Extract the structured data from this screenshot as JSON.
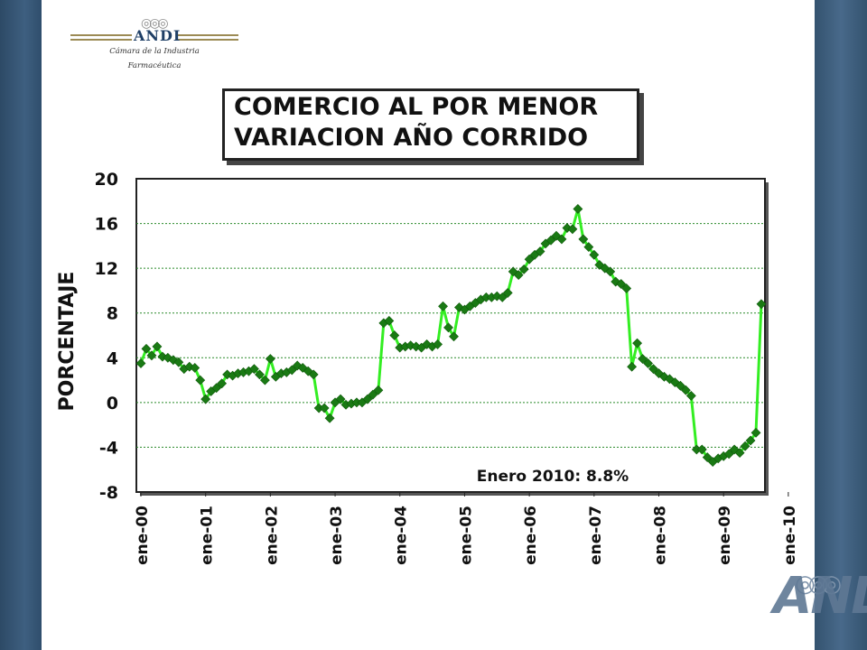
{
  "logo": {
    "name": "ANDI",
    "caption_line1": "Cámara de la Industria",
    "caption_line2": "Farmacéutica"
  },
  "title": {
    "line1": "COMERCIO AL POR MENOR",
    "line2": "VARIACION AÑO CORRIDO"
  },
  "colors": {
    "series": "#33ee22",
    "marker": "#1a7a14",
    "grid": "#2a8a2a",
    "band": "#3a5a7a"
  },
  "chart_data": {
    "type": "line",
    "title": "COMERCIO AL POR MENOR VARIACION AÑO CORRIDO",
    "ylabel": "PORCENTAJE",
    "xlabel": "",
    "ylim": [
      -8,
      20
    ],
    "yticks": [
      20,
      16,
      12,
      8,
      4,
      0,
      -4,
      -8
    ],
    "ytick_labels": [
      "20",
      "16",
      "12",
      "8",
      "4",
      "0",
      "-4",
      "-8"
    ],
    "xtick_labels": [
      "ene-00",
      "ene-01",
      "ene-02",
      "ene-03",
      "ene-04",
      "ene-05",
      "ene-06",
      "ene-07",
      "ene-08",
      "ene-09",
      "ene-10"
    ],
    "grid": "horizontal dashed",
    "annotation": "Enero 2010: 8.8%",
    "series": [
      {
        "start": "ene-00",
        "frequency": "monthly",
        "values": [
          3.5,
          4.8,
          4.2,
          5.0,
          4.1,
          4.0,
          3.8,
          3.6,
          3.0,
          3.2,
          3.1,
          2.0,
          0.3,
          1.0,
          1.3,
          1.7,
          2.5,
          2.4,
          2.6,
          2.7,
          2.8,
          3.0,
          2.5,
          2.0,
          3.9,
          2.3,
          2.6,
          2.7,
          2.9,
          3.3,
          3.1,
          2.8,
          2.5,
          -0.5,
          -0.5,
          -1.4,
          0.0,
          0.3,
          -0.2,
          -0.1,
          0.0,
          0.0,
          0.3,
          0.7,
          1.1,
          7.1,
          7.3,
          6.0,
          4.9,
          5.0,
          5.1,
          5.0,
          4.9,
          5.2,
          5.0,
          5.2,
          8.6,
          6.7,
          5.9,
          8.5,
          8.3,
          8.6,
          8.9,
          9.2,
          9.4,
          9.4,
          9.5,
          9.4,
          9.8,
          11.7,
          11.4,
          11.9,
          12.8,
          13.2,
          13.5,
          14.2,
          14.5,
          14.9,
          14.6,
          15.6,
          15.5,
          17.3,
          14.6,
          13.9,
          13.2,
          12.3,
          12.0,
          11.7,
          10.8,
          10.6,
          10.2,
          3.2,
          5.3,
          3.9,
          3.5,
          3.0,
          2.6,
          2.3,
          2.1,
          1.8,
          1.5,
          1.1,
          0.6,
          -4.2,
          -4.2,
          -4.9,
          -5.3,
          -5.0,
          -4.8,
          -4.6,
          -4.2,
          -4.5,
          -3.9,
          -3.4,
          -2.7,
          8.8
        ]
      }
    ]
  }
}
